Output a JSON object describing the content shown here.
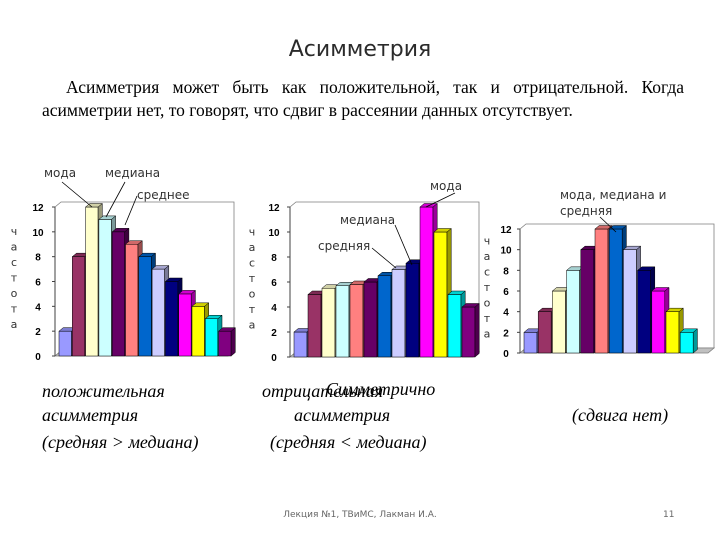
{
  "slide": {
    "title": "Асимметрия",
    "intro": "Асимметрия может быть как положительной, так и отрицательной. Когда асимметрии нет, то говорят, что сдвиг в рассеянии данных отсутствует.",
    "footer": "Лекция №1, ТВиМС, Лакман И.А.",
    "page_number": "11"
  },
  "captions": {
    "left_line1": "положительная",
    "left_line2": "асимметрия",
    "left_line3": "(средняя > медиана)",
    "mid_line1a": "отрицательная",
    "mid_line1b": "Симметрично",
    "mid_line2": "асимметрия",
    "mid_line3": "(средняя < медиана)",
    "right_line": "(сдвига нет)"
  },
  "chart_data": [
    {
      "type": "bar",
      "ylabel": "частота",
      "ylim": [
        0,
        12
      ],
      "yticks": [
        0,
        2,
        4,
        6,
        8,
        10,
        12
      ],
      "values": [
        2,
        8,
        12,
        11,
        10,
        9,
        8,
        7,
        6,
        5,
        4,
        3,
        2
      ],
      "colors": [
        "#9999ff",
        "#993366",
        "#ffffcc",
        "#ccffff",
        "#660066",
        "#ff8080",
        "#0066cc",
        "#ccccff",
        "#000080",
        "#ff00ff",
        "#ffff00",
        "#00ffff",
        "#800080"
      ],
      "annotations": [
        "мода",
        "медиана",
        "среднее"
      ]
    },
    {
      "type": "bar",
      "ylabel": "частота",
      "ylim": [
        0,
        12
      ],
      "yticks": [
        0,
        2,
        4,
        6,
        8,
        10,
        12
      ],
      "values": [
        2,
        5,
        5.5,
        5.7,
        5.8,
        6,
        6.5,
        7,
        7.5,
        12,
        10,
        5,
        4
      ],
      "colors": [
        "#9999ff",
        "#993366",
        "#ffffcc",
        "#ccffff",
        "#ff8080",
        "#660066",
        "#0066cc",
        "#ccccff",
        "#000080",
        "#ff00ff",
        "#ffff00",
        "#00ffff",
        "#800080"
      ],
      "annotations": [
        "мода",
        "медиана",
        "средняя"
      ]
    },
    {
      "type": "bar",
      "ylabel": "частота",
      "ylim": [
        0,
        12
      ],
      "yticks": [
        0,
        2,
        4,
        6,
        8,
        10,
        12
      ],
      "values": [
        2,
        4,
        6,
        8,
        10,
        12,
        12,
        10,
        8,
        6,
        4,
        2
      ],
      "colors": [
        "#9999ff",
        "#993366",
        "#ffffcc",
        "#ccffff",
        "#660066",
        "#ff8080",
        "#0066cc",
        "#ccccff",
        "#000080",
        "#ff00ff",
        "#ffff00",
        "#00ffff"
      ],
      "annotations": [
        "мода, медиана и",
        "средняя"
      ]
    }
  ]
}
